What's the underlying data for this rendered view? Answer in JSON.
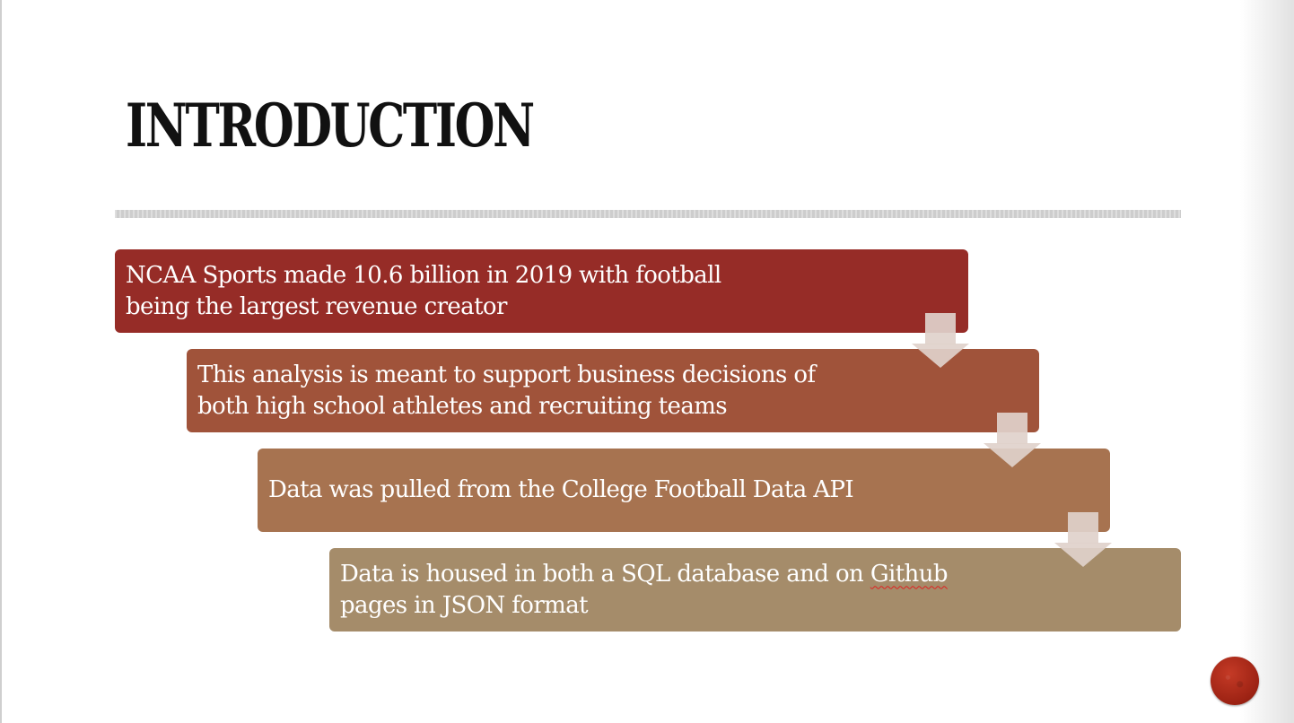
{
  "slide": {
    "title": "INTRODUCTION",
    "steps": [
      {
        "line1": "NCAA Sports made 10.6 billion in 2019 with football",
        "line2": "being the largest revenue creator",
        "color": "#962c27"
      },
      {
        "line1": "This analysis is meant to support business decisions of",
        "line2": "both high school athletes and recruiting teams",
        "color": "#a0533a"
      },
      {
        "line1": "Data was pulled from the College Football Data API",
        "line2": "",
        "color": "#a77350"
      },
      {
        "line1_before": "Data is housed in both a SQL database and on ",
        "line1_misspelled": "Github",
        "line2": "pages in JSON format",
        "color": "#a58c6a"
      }
    ],
    "arrow_color": "#dfd1cb",
    "nav_button_icon": "slide-nav-circle-icon",
    "nav_button_color": "#b32d1c"
  }
}
